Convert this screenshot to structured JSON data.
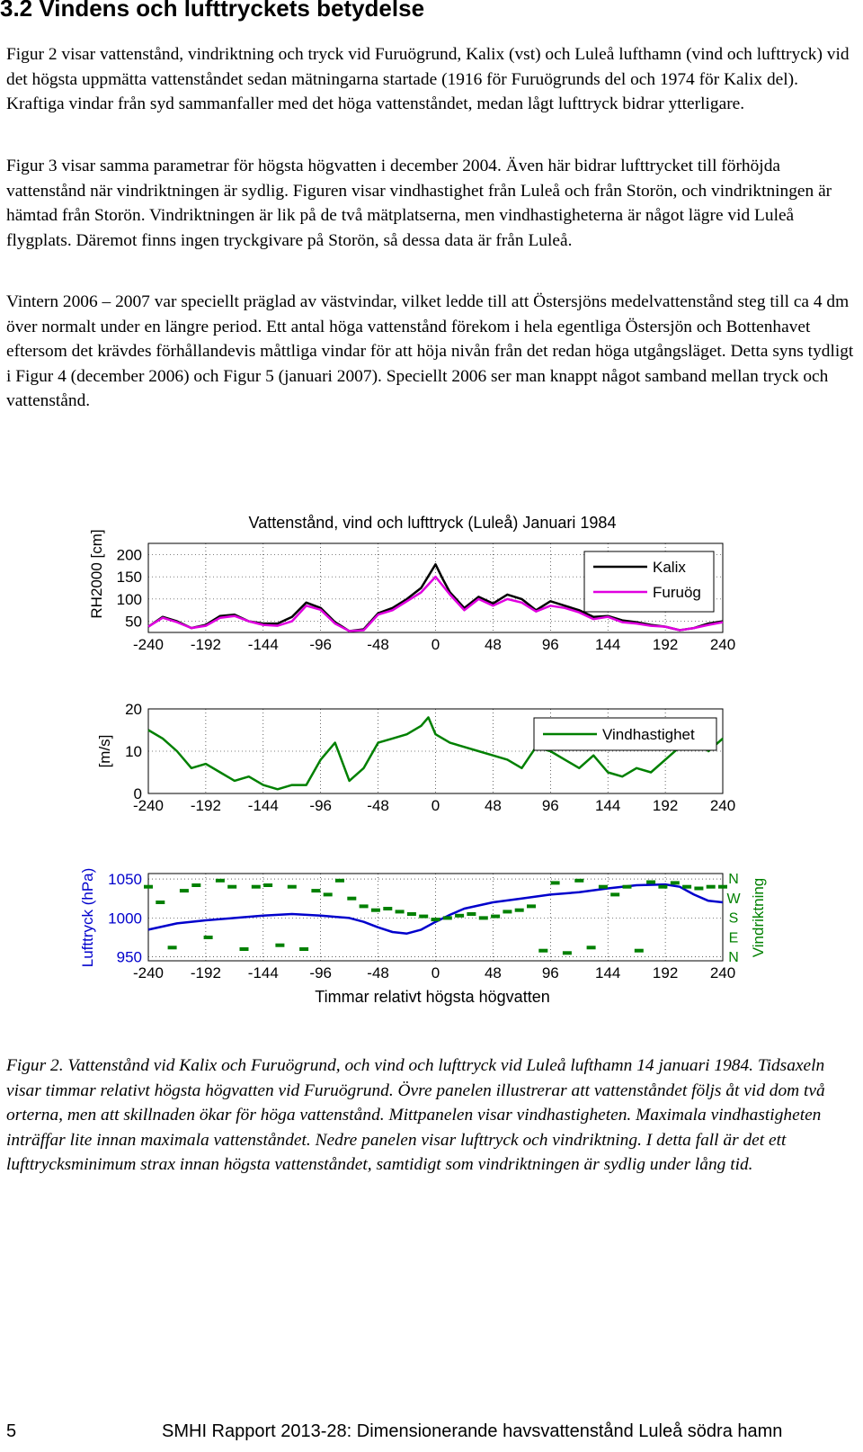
{
  "section": {
    "heading": "3.2   Vindens och lufttryckets betydelse"
  },
  "paragraphs": [
    "Figur 2 visar vattenstånd, vindriktning och tryck vid Furuögrund, Kalix (vst) och Luleå lufthamn (vind och lufttryck) vid det högsta uppmätta vattenståndet sedan mätningarna startade (1916 för Furuögrunds del och 1974 för Kalix del). Kraftiga vindar från syd sammanfaller med det höga vattenståndet, medan lågt lufttryck bidrar ytterligare.",
    "Figur 3 visar samma parametrar för högsta högvatten i december 2004. Även här bidrar lufttrycket till förhöjda vattenstånd när vindriktningen är sydlig. Figuren visar vindhastighet från Luleå och från Storön, och vindriktningen är hämtad från Storön. Vindriktningen är lik på de två mätplatserna, men vindhastigheterna är något lägre vid Luleå flygplats. Däremot finns ingen tryckgivare på Storön, så dessa data är från Luleå.",
    "Vintern 2006 – 2007 var speciellt präglad av västvindar, vilket ledde till att Östersjöns medelvattenstånd steg till ca 4 dm över normalt under en längre period. Ett antal höga vattenstånd förekom i hela egentliga Östersjön och Bottenhavet eftersom det krävdes förhållandevis måttliga vindar för att höja nivån från det redan höga utgångsläget. Detta syns tydligt i Figur 4 (december 2006) och Figur 5 (januari 2007). Speciellt 2006 ser man knappt något samband mellan tryck och vattenstånd."
  ],
  "caption": "Figur 2. Vattenstånd vid Kalix och Furuögrund, och vind och lufttryck vid Luleå lufthamn 14 januari 1984. Tidsaxeln visar timmar relativt högsta högvatten vid Furuögrund. Övre panelen illustrerar att vattenståndet följs åt vid dom två orterna, men att skillnaden ökar för höga vattenstånd. Mittpanelen visar vindhastigheten. Maximala vindhastigheten inträffar lite innan maximala vattenståndet. Nedre panelen visar lufttryck och vindriktning. I detta fall är det ett lufttrycksminimum strax innan högsta vattenståndet, samtidigt som vindriktningen är sydlig under lång tid.",
  "footer": {
    "page_number": "5",
    "report": "SMHI Rapport 2013-28: Dimensionerande havsvattenstånd Luleå södra hamn"
  },
  "chart_data": [
    {
      "type": "line",
      "title": "Vattenstånd, vind och lufttryck (Luleå) Januari 1984",
      "ylabel": "RH2000 [cm]",
      "xlim": [
        -240,
        240
      ],
      "ylim": [
        25,
        225
      ],
      "x_ticks": [
        "-240",
        "-192",
        "-144",
        "-96",
        "-48",
        "0",
        "48",
        "96",
        "144",
        "192",
        "240"
      ],
      "y_ticks": [
        "200",
        "150",
        "100",
        "50"
      ],
      "y_tick_values": [
        200,
        150,
        100,
        50
      ],
      "grid": true,
      "legend": "top-right",
      "series": [
        {
          "name": "Kalix",
          "color": "#000000",
          "x": [
            -240,
            -228,
            -216,
            -204,
            -192,
            -180,
            -168,
            -156,
            -144,
            -132,
            -120,
            -108,
            -96,
            -84,
            -72,
            -60,
            -48,
            -36,
            -24,
            -12,
            0,
            6,
            12,
            24,
            36,
            48,
            60,
            72,
            84,
            96,
            108,
            120,
            132,
            144,
            156,
            168,
            180,
            192,
            204,
            216,
            228,
            240
          ],
          "y": [
            38,
            60,
            50,
            35,
            42,
            62,
            65,
            50,
            45,
            45,
            60,
            92,
            80,
            48,
            28,
            32,
            68,
            80,
            100,
            125,
            178,
            145,
            115,
            80,
            105,
            90,
            110,
            100,
            75,
            95,
            85,
            75,
            60,
            62,
            52,
            48,
            42,
            38,
            30,
            35,
            45,
            50
          ]
        },
        {
          "name": "Furuög",
          "color": "#e000e0",
          "x": [
            -240,
            -228,
            -216,
            -204,
            -192,
            -180,
            -168,
            -156,
            -144,
            -132,
            -120,
            -108,
            -96,
            -84,
            -72,
            -60,
            -48,
            -36,
            -24,
            -12,
            0,
            6,
            12,
            24,
            36,
            48,
            60,
            72,
            84,
            96,
            108,
            120,
            132,
            144,
            156,
            168,
            180,
            192,
            204,
            216,
            228,
            240
          ],
          "y": [
            38,
            58,
            48,
            35,
            40,
            58,
            62,
            50,
            42,
            40,
            50,
            85,
            76,
            45,
            28,
            30,
            65,
            75,
            95,
            115,
            150,
            130,
            110,
            75,
            100,
            85,
            100,
            92,
            72,
            85,
            80,
            70,
            55,
            60,
            48,
            45,
            40,
            38,
            30,
            35,
            42,
            48
          ]
        }
      ]
    },
    {
      "type": "line",
      "ylabel": "[m/s]",
      "xlim": [
        -240,
        240
      ],
      "ylim": [
        0,
        20
      ],
      "x_ticks": [
        "-240",
        "-192",
        "-144",
        "-96",
        "-48",
        "0",
        "48",
        "96",
        "144",
        "192",
        "240"
      ],
      "y_ticks": [
        "20",
        "10",
        "0"
      ],
      "y_tick_values": [
        20,
        10,
        0
      ],
      "grid": true,
      "legend": "top-right",
      "series": [
        {
          "name": "Vindhastighet",
          "color": "#008000",
          "x": [
            -240,
            -228,
            -216,
            -204,
            -192,
            -180,
            -168,
            -156,
            -144,
            -132,
            -120,
            -108,
            -96,
            -84,
            -72,
            -60,
            -48,
            -36,
            -24,
            -12,
            -6,
            0,
            12,
            24,
            36,
            48,
            60,
            72,
            84,
            96,
            108,
            120,
            132,
            144,
            156,
            168,
            180,
            192,
            204,
            216,
            228,
            240
          ],
          "y": [
            15,
            13,
            10,
            6,
            7,
            5,
            3,
            4,
            2,
            1,
            2,
            2,
            8,
            12,
            3,
            6,
            12,
            13,
            14,
            16,
            18,
            14,
            12,
            11,
            10,
            9,
            8,
            6,
            11,
            10,
            8,
            6,
            9,
            5,
            4,
            6,
            5,
            8,
            11,
            14,
            10,
            13
          ]
        }
      ]
    },
    {
      "type": "line",
      "ylabel": "Lufttryck (hPa)",
      "y2label": "Vindriktning",
      "xlabel": "Timmar relativt högsta högvatten",
      "xlim": [
        -240,
        240
      ],
      "ylim": [
        945,
        1057
      ],
      "x_ticks": [
        "-240",
        "-192",
        "-144",
        "-96",
        "-48",
        "0",
        "48",
        "96",
        "144",
        "192",
        "240"
      ],
      "y_ticks": [
        "1050",
        "1000",
        "950"
      ],
      "y_tick_values": [
        1050,
        1000,
        950
      ],
      "y2_ticks": [
        "N",
        "W",
        "S",
        "E",
        "N"
      ],
      "grid": true,
      "series": [
        {
          "name": "Lufttryck",
          "color": "#0000cc",
          "x": [
            -240,
            -216,
            -192,
            -168,
            -144,
            -120,
            -96,
            -72,
            -60,
            -48,
            -36,
            -24,
            -12,
            0,
            12,
            24,
            48,
            72,
            96,
            120,
            144,
            168,
            192,
            204,
            216,
            228,
            240
          ],
          "y": [
            985,
            993,
            997,
            1000,
            1003,
            1005,
            1003,
            1000,
            995,
            988,
            982,
            980,
            985,
            995,
            1004,
            1012,
            1020,
            1025,
            1030,
            1033,
            1038,
            1042,
            1043,
            1040,
            1030,
            1022,
            1020
          ]
        },
        {
          "name": "Vindriktning",
          "color": "#008000",
          "x": [
            -240,
            -230,
            -220,
            -210,
            -200,
            -190,
            -180,
            -170,
            -160,
            -150,
            -140,
            -130,
            -120,
            -110,
            -100,
            -90,
            -80,
            -70,
            -60,
            -50,
            -40,
            -30,
            -20,
            -10,
            0,
            10,
            20,
            30,
            40,
            50,
            60,
            70,
            80,
            90,
            100,
            110,
            120,
            130,
            140,
            150,
            160,
            170,
            180,
            190,
            200,
            210,
            220,
            230,
            240
          ],
          "y": [
            1040,
            1020,
            962,
            1035,
            1042,
            975,
            1048,
            1040,
            960,
            1040,
            1042,
            965,
            1040,
            960,
            1035,
            1030,
            1048,
            1025,
            1015,
            1010,
            1012,
            1008,
            1005,
            1002,
            998,
            1000,
            1003,
            1005,
            1000,
            1002,
            1008,
            1010,
            1015,
            958,
            1045,
            955,
            1048,
            962,
            1040,
            1030,
            1040,
            958,
            1046,
            1040,
            1045,
            1040,
            1038,
            1040,
            1040
          ]
        }
      ]
    }
  ]
}
